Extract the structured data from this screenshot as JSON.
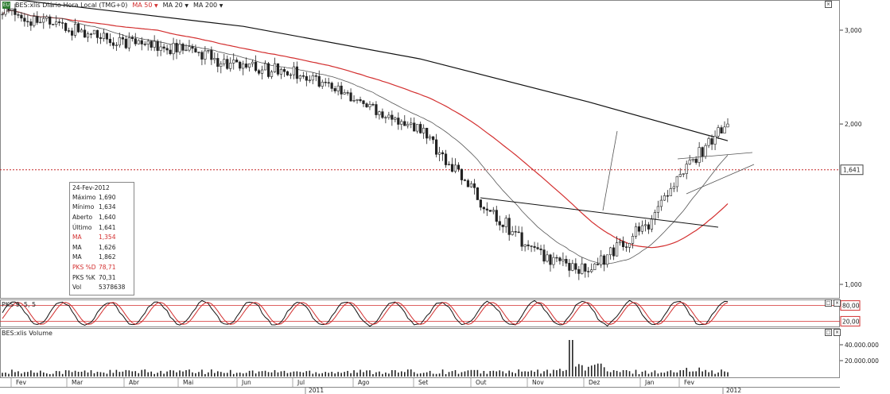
{
  "header": {
    "symbol": "BES:xlis Diário Hora Local (TMG+0)",
    "ma1": "MA 50",
    "ma2": "MA 20",
    "ma3": "MA 200",
    "dropdown_icon": "chevron-down-icon",
    "logo_text": "EU"
  },
  "price_axis": [
    "3,000",
    "2,000",
    "1,641",
    "1,000"
  ],
  "pks_axis": [
    "80,00",
    "20,00"
  ],
  "volume_axis": [
    "40.000.000",
    "20.000.000"
  ],
  "time_axis": {
    "months": [
      "Fev",
      "Mar",
      "Abr",
      "Mai",
      "Jun",
      "Jul",
      "Ago",
      "Set",
      "Out",
      "Nov",
      "Dez",
      "Jan",
      "Fev"
    ],
    "years": [
      "2011",
      "2012"
    ]
  },
  "pks_title": "PKS 9, 5, 5",
  "volume_title": "BES:xlis Volume",
  "infobox": {
    "date": "24-Fev-2012",
    "rows": [
      {
        "label": "Máximo",
        "value": "1,690",
        "red": false
      },
      {
        "label": "Mínimo",
        "value": "1,634",
        "red": false
      },
      {
        "label": "Aberto",
        "value": "1,640",
        "red": false
      },
      {
        "label": "Último",
        "value": "1,641",
        "red": false
      },
      {
        "label": "MA",
        "value": "1,354",
        "red": true
      },
      {
        "label": "MA",
        "value": "1,626",
        "red": false
      },
      {
        "label": "MA",
        "value": "1,862",
        "red": false
      },
      {
        "label": "PKS %D",
        "value": "78,71",
        "red": true
      },
      {
        "label": "PKS %K",
        "value": "70,31",
        "red": false
      },
      {
        "label": "Vol",
        "value": "5378638",
        "red": false
      }
    ]
  },
  "colors": {
    "up": "#ffffff",
    "down": "#222222",
    "ma50": "#d32f2f",
    "ma20": "#555555",
    "ma200": "#111111",
    "last_price_line": "#c62828",
    "pks_k": "#111111",
    "pks_d": "#d32f2f"
  },
  "chart_data": {
    "type": "candlestick",
    "title": "BES:xlis Diário Hora Local (TMG+0)",
    "last_price": 1.641,
    "y_scale": "log",
    "ylim": [
      0.95,
      3.3
    ],
    "price_ticks": [
      1.0,
      2.0,
      3.0
    ],
    "monthly_close": [
      {
        "month": "Fev 2011",
        "close": 3.25
      },
      {
        "month": "Mar 2011",
        "close": 3.0
      },
      {
        "month": "Abr 2011",
        "close": 2.85
      },
      {
        "month": "Mai 2011",
        "close": 2.75
      },
      {
        "month": "Jun 2011",
        "close": 2.55
      },
      {
        "month": "Jul 2011",
        "close": 2.5
      },
      {
        "month": "Ago 2011",
        "close": 2.2
      },
      {
        "month": "Set 2011",
        "close": 1.95
      },
      {
        "month": "Out 2011",
        "close": 1.45
      },
      {
        "month": "Nov 2011",
        "close": 1.15
      },
      {
        "month": "Dez 2011",
        "close": 1.05
      },
      {
        "month": "Jan 2012",
        "close": 1.3
      },
      {
        "month": "Fev 2012",
        "close": 1.64
      }
    ],
    "ma200": [
      {
        "month": "Fev 2011",
        "value": 3.45
      },
      {
        "month": "Jun 2011",
        "value": 3.05
      },
      {
        "month": "Set 2011",
        "value": 2.65
      },
      {
        "month": "Dez 2011",
        "value": 2.2
      },
      {
        "month": "Fev 2012",
        "value": 1.86
      }
    ],
    "pks_levels": [
      80,
      20
    ],
    "volume_ticks": [
      20000000,
      40000000
    ],
    "volume_peak": {
      "month": "Dez 2011",
      "value": 46000000
    }
  }
}
